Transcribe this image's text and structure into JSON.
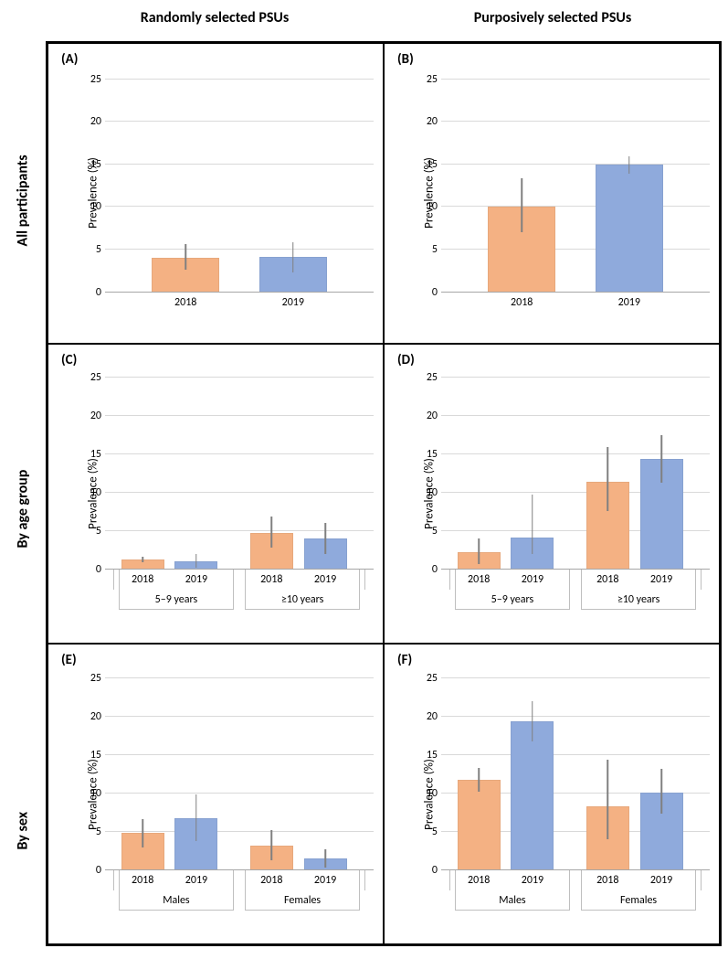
{
  "headers": {
    "col_left": "Randomly selected PSUs",
    "col_right": "Purposively selected PSUs",
    "row_1": "All participants",
    "row_2": "By age group",
    "row_3": "By sex"
  },
  "ylabel": "Prevalence (%)",
  "ylim": [
    0,
    27
  ],
  "yticks": [
    0,
    5,
    10,
    15,
    20,
    25
  ],
  "grid_color": "#d9d9d9",
  "colors": {
    "c2018": "#f4b183",
    "c2019": "#8faadc"
  },
  "label_fontsize": 13,
  "tick_fontsize": 12,
  "panels": {
    "A": {
      "label": "(A)",
      "type": "simple",
      "bars": [
        {
          "x": "2018",
          "v": 4.0,
          "lo": 2.6,
          "hi": 5.6,
          "color_key": "c2018"
        },
        {
          "x": "2019",
          "v": 4.1,
          "lo": 2.3,
          "hi": 5.9,
          "color_key": "c2019"
        }
      ]
    },
    "B": {
      "label": "(B)",
      "type": "simple",
      "bars": [
        {
          "x": "2018",
          "v": 10.1,
          "lo": 7.0,
          "hi": 13.4,
          "color_key": "c2018"
        },
        {
          "x": "2019",
          "v": 15.0,
          "lo": 13.9,
          "hi": 15.9,
          "color_key": "c2019"
        }
      ]
    },
    "C": {
      "label": "(C)",
      "type": "grouped",
      "groups": [
        "5–9 years",
        "≥10 years"
      ],
      "bars": [
        {
          "g": 0,
          "x": "2018",
          "v": 1.3,
          "lo": 1.0,
          "hi": 1.7,
          "color_key": "c2018"
        },
        {
          "g": 0,
          "x": "2019",
          "v": 1.1,
          "lo": 0.3,
          "hi": 2.0,
          "color_key": "c2019"
        },
        {
          "g": 1,
          "x": "2018",
          "v": 4.8,
          "lo": 2.9,
          "hi": 6.9,
          "color_key": "c2018"
        },
        {
          "g": 1,
          "x": "2019",
          "v": 4.1,
          "lo": 2.0,
          "hi": 6.1,
          "color_key": "c2019"
        }
      ]
    },
    "D": {
      "label": "(D)",
      "type": "grouped",
      "groups": [
        "5–9 years",
        "≥10 years"
      ],
      "bars": [
        {
          "g": 0,
          "x": "2018",
          "v": 2.3,
          "lo": 0.8,
          "hi": 4.1,
          "color_key": "c2018"
        },
        {
          "g": 0,
          "x": "2019",
          "v": 4.2,
          "lo": 2.0,
          "hi": 9.8,
          "color_key": "c2019"
        },
        {
          "g": 1,
          "x": "2018",
          "v": 11.5,
          "lo": 7.6,
          "hi": 16.0,
          "color_key": "c2018"
        },
        {
          "g": 1,
          "x": "2019",
          "v": 14.4,
          "lo": 11.3,
          "hi": 17.6,
          "color_key": "c2019"
        }
      ]
    },
    "E": {
      "label": "(E)",
      "type": "grouped",
      "groups": [
        "Males",
        "Females"
      ],
      "bars": [
        {
          "g": 0,
          "x": "2018",
          "v": 4.9,
          "lo": 3.0,
          "hi": 6.7,
          "color_key": "c2018"
        },
        {
          "g": 0,
          "x": "2019",
          "v": 6.8,
          "lo": 3.8,
          "hi": 9.9,
          "color_key": "c2019"
        },
        {
          "g": 1,
          "x": "2018",
          "v": 3.2,
          "lo": 1.3,
          "hi": 5.3,
          "color_key": "c2018"
        },
        {
          "g": 1,
          "x": "2019",
          "v": 1.5,
          "lo": 0.3,
          "hi": 2.7,
          "color_key": "c2019"
        }
      ]
    },
    "F": {
      "label": "(F)",
      "type": "grouped",
      "groups": [
        "Males",
        "Females"
      ],
      "bars": [
        {
          "g": 0,
          "x": "2018",
          "v": 11.8,
          "lo": 10.2,
          "hi": 13.3,
          "color_key": "c2018"
        },
        {
          "g": 0,
          "x": "2019",
          "v": 19.4,
          "lo": 16.8,
          "hi": 22.0,
          "color_key": "c2019"
        },
        {
          "g": 1,
          "x": "2018",
          "v": 8.3,
          "lo": 4.1,
          "hi": 14.4,
          "color_key": "c2018"
        },
        {
          "g": 1,
          "x": "2019",
          "v": 10.1,
          "lo": 7.4,
          "hi": 13.2,
          "color_key": "c2019"
        }
      ]
    }
  }
}
